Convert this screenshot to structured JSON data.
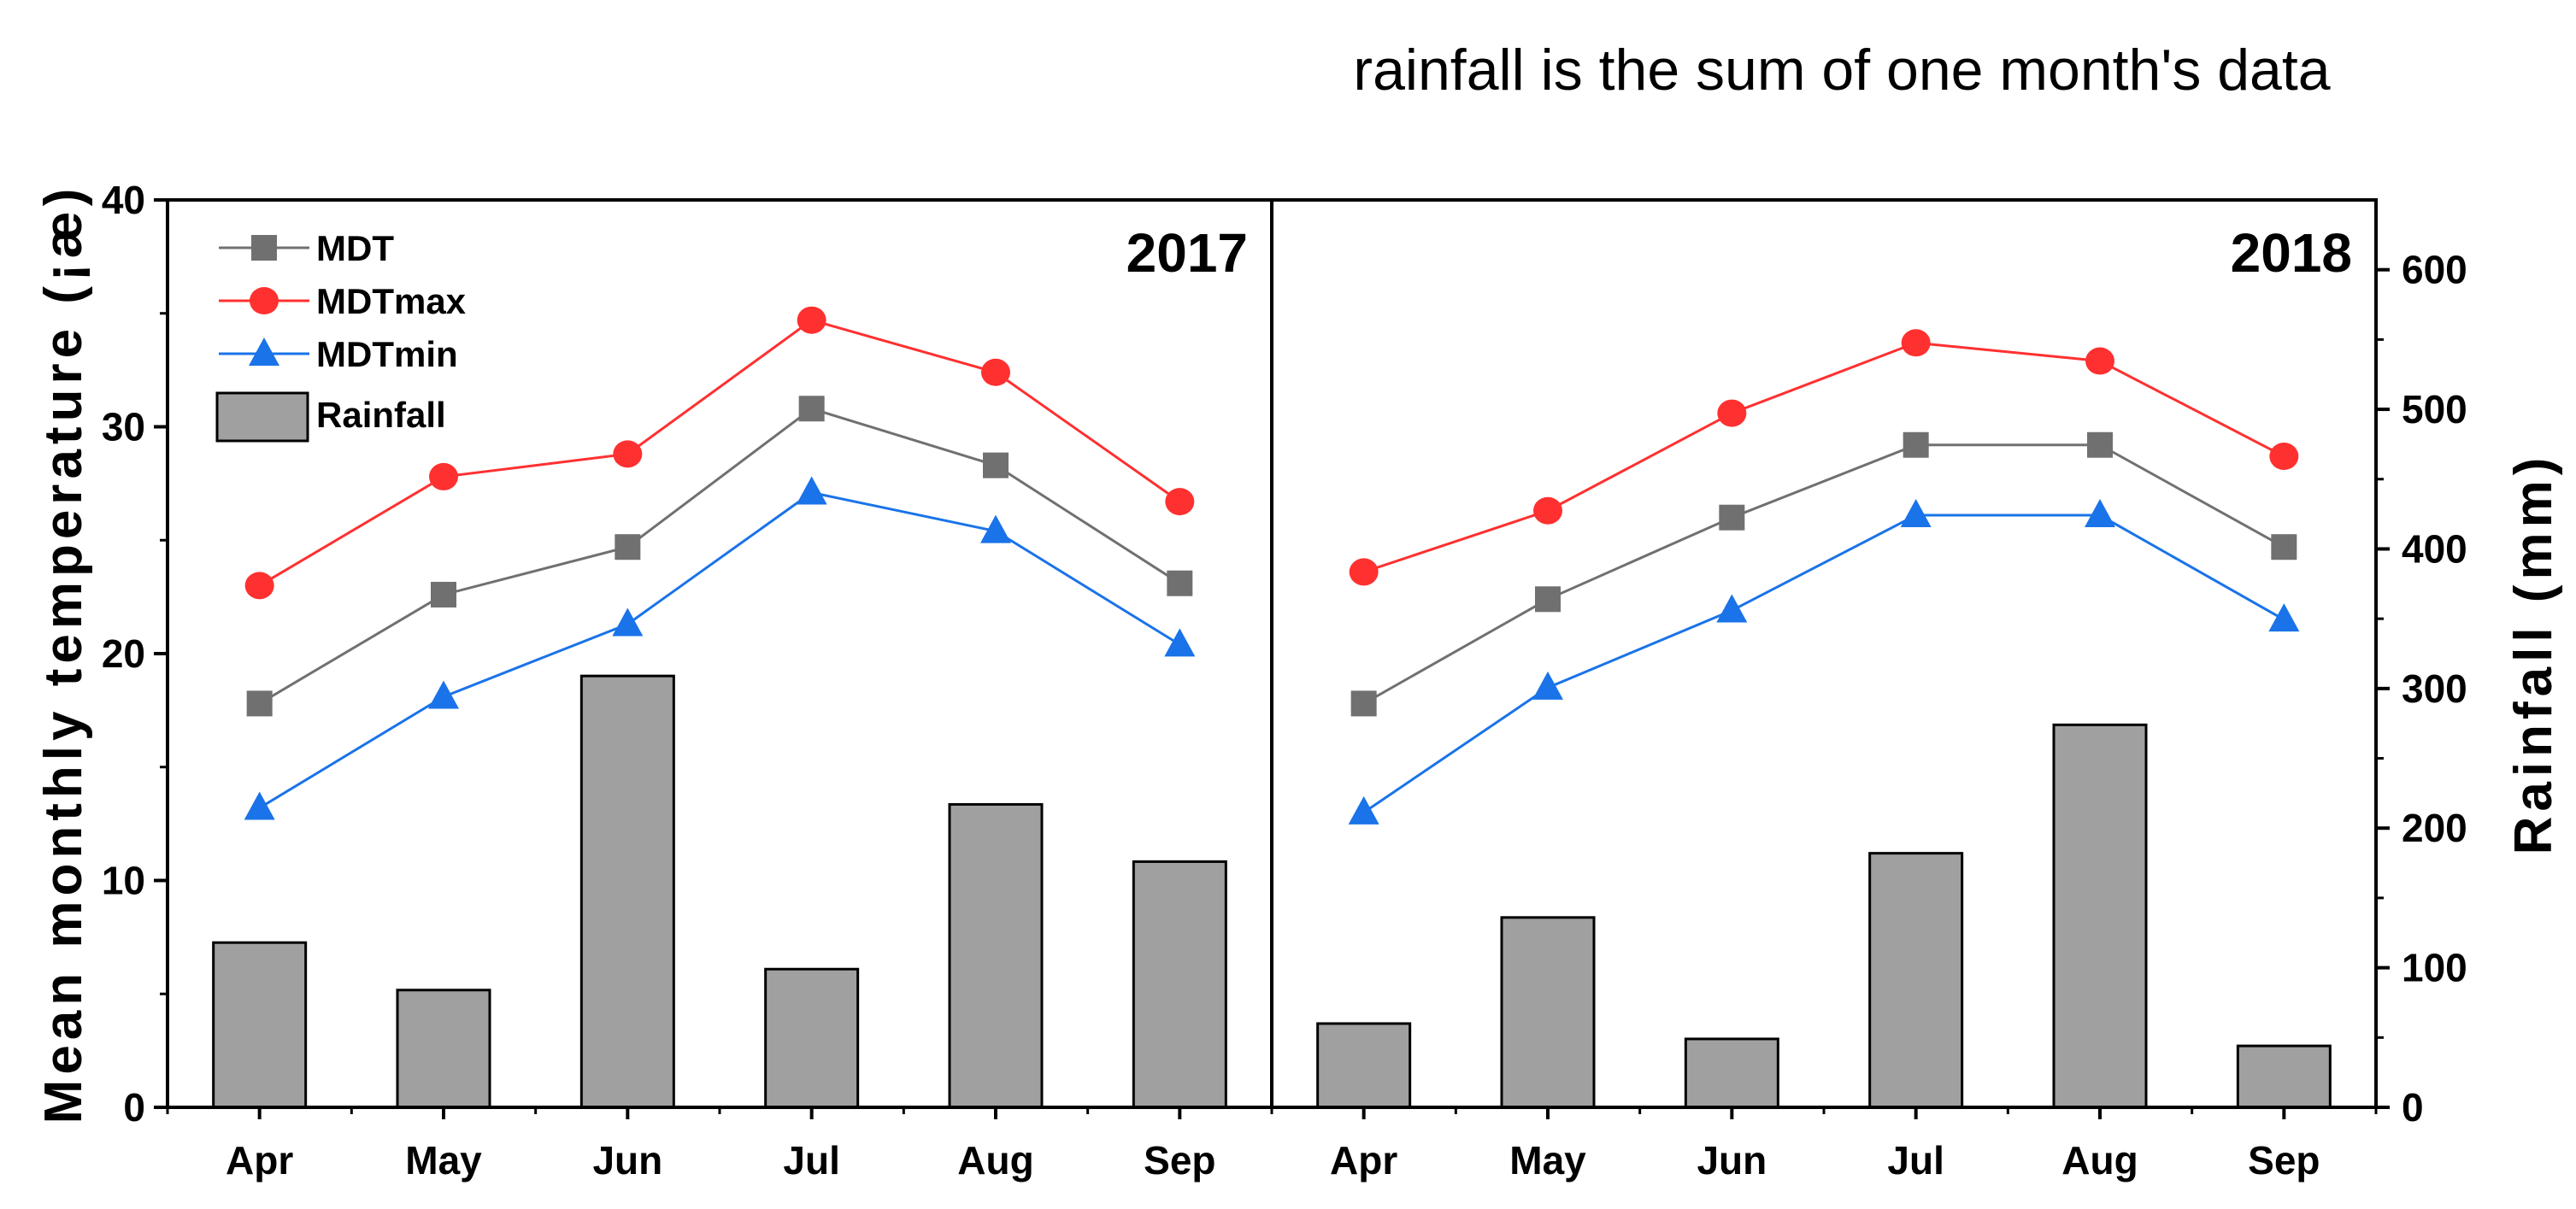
{
  "note": "rainfall is the sum of one month's data",
  "colors": {
    "mdt": "#707070",
    "mdtmax": "#ff3030",
    "mdtmin": "#1a73e8",
    "rainfall": "#a0a0a0",
    "axis": "#000000"
  },
  "chart_data": {
    "type": "bar+line",
    "note": "rainfall is the sum of one month's data",
    "ylabel_left": "Mean monthly temperature (¡æ)",
    "ylabel_right": "Rainfall (mm)",
    "ylim_left": [
      0,
      40
    ],
    "yticks_left": [
      "0",
      "10",
      "20",
      "30",
      "40"
    ],
    "ylim_right": [
      0,
      650
    ],
    "yticks_right": [
      "0",
      "100",
      "200",
      "300",
      "400",
      "500",
      "600"
    ],
    "legend": [
      {
        "key": "mdt",
        "label": "MDT",
        "marker": "square"
      },
      {
        "key": "mdtmax",
        "label": "MDTmax",
        "marker": "circle"
      },
      {
        "key": "mdtmin",
        "label": "MDTmin",
        "marker": "triangle"
      },
      {
        "key": "rainfall",
        "label": "Rainfall",
        "marker": "bar"
      }
    ],
    "legend_position": "top-left",
    "panels": [
      {
        "year": "2017",
        "categories": [
          "Apr",
          "May",
          "Jun",
          "Jul",
          "Aug",
          "Sep"
        ],
        "series": [
          {
            "key": "mdt",
            "name": "MDT",
            "axis": "left",
            "values": [
              17.8,
              22.6,
              24.7,
              30.8,
              28.3,
              23.1
            ]
          },
          {
            "key": "mdtmax",
            "name": "MDTmax",
            "axis": "left",
            "values": [
              23.0,
              27.8,
              28.8,
              34.7,
              32.4,
              26.7
            ]
          },
          {
            "key": "mdtmin",
            "name": "MDTmin",
            "axis": "left",
            "values": [
              13.2,
              18.1,
              21.3,
              27.1,
              25.4,
              20.4
            ]
          },
          {
            "key": "rainfall",
            "name": "Rainfall",
            "axis": "right",
            "values": [
              118,
              84,
              309,
              99,
              217,
              176
            ]
          }
        ]
      },
      {
        "year": "2018",
        "categories": [
          "Apr",
          "May",
          "Jun",
          "Jul",
          "Aug",
          "Sep"
        ],
        "series": [
          {
            "key": "mdt",
            "name": "MDT",
            "axis": "left",
            "values": [
              17.8,
              22.4,
              26.0,
              29.2,
              29.2,
              24.7
            ]
          },
          {
            "key": "mdtmax",
            "name": "MDTmax",
            "axis": "left",
            "values": [
              23.6,
              26.3,
              30.6,
              33.7,
              32.9,
              28.7
            ]
          },
          {
            "key": "mdtmin",
            "name": "MDTmin",
            "axis": "left",
            "values": [
              13.0,
              18.5,
              21.9,
              26.1,
              26.1,
              21.5
            ]
          },
          {
            "key": "rainfall",
            "name": "Rainfall",
            "axis": "right",
            "values": [
              60,
              136,
              49,
              182,
              274,
              44
            ]
          }
        ]
      }
    ]
  }
}
